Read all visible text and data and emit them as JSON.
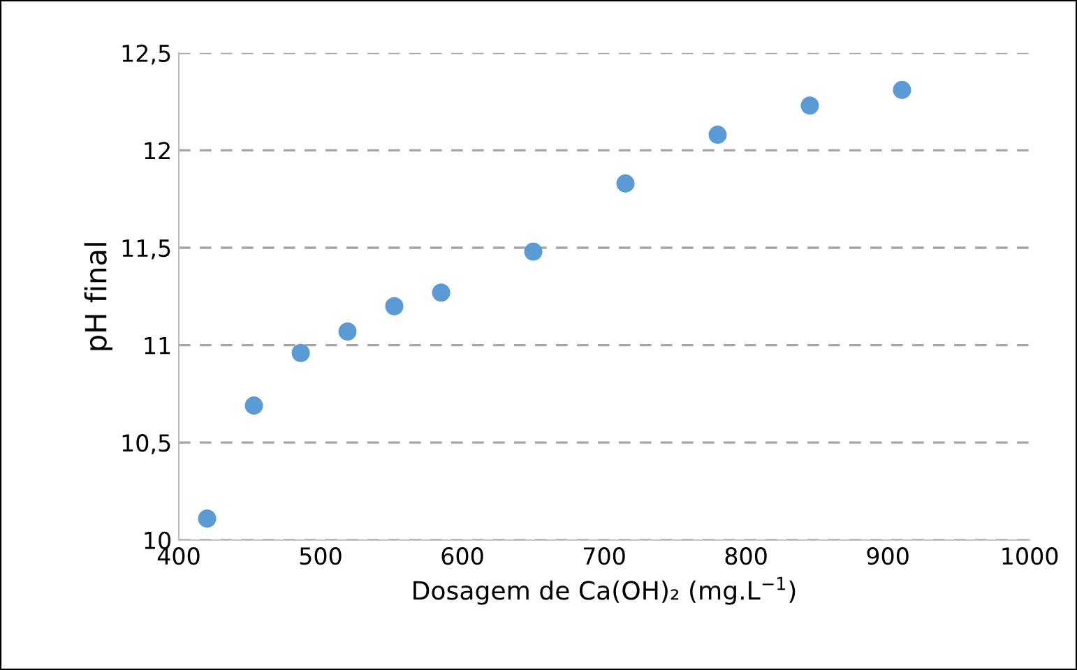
{
  "chart_data": {
    "type": "scatter",
    "xlabel": "Dosagem de Ca(OH)₂ (mg.L$^{−1}$)",
    "ylabel": "pH final",
    "x": [
      420,
      453,
      486,
      519,
      552,
      585,
      650,
      715,
      780,
      845,
      910
    ],
    "series": [
      {
        "color": "#5b9bd5",
        "values": [
          10.11,
          10.69,
          10.96,
          11.07,
          11.2,
          11.27,
          11.48,
          11.83,
          12.08,
          12.23,
          12.31
        ]
      }
    ],
    "xlim": [
      400,
      1000
    ],
    "xticks": [
      400,
      500,
      600,
      700,
      800,
      900,
      1000
    ],
    "ylim": [
      10,
      12.5
    ],
    "yticks": [
      {
        "value": 10,
        "label": "10"
      },
      {
        "value": 10.5,
        "label": "10,5"
      },
      {
        "value": 11,
        "label": "11"
      },
      {
        "value": 11.5,
        "label": "11,5"
      },
      {
        "value": 12,
        "label": "12"
      },
      {
        "value": 12.5,
        "label": "12,5"
      }
    ],
    "grid": "y",
    "marker": "circle",
    "legend": false
  }
}
